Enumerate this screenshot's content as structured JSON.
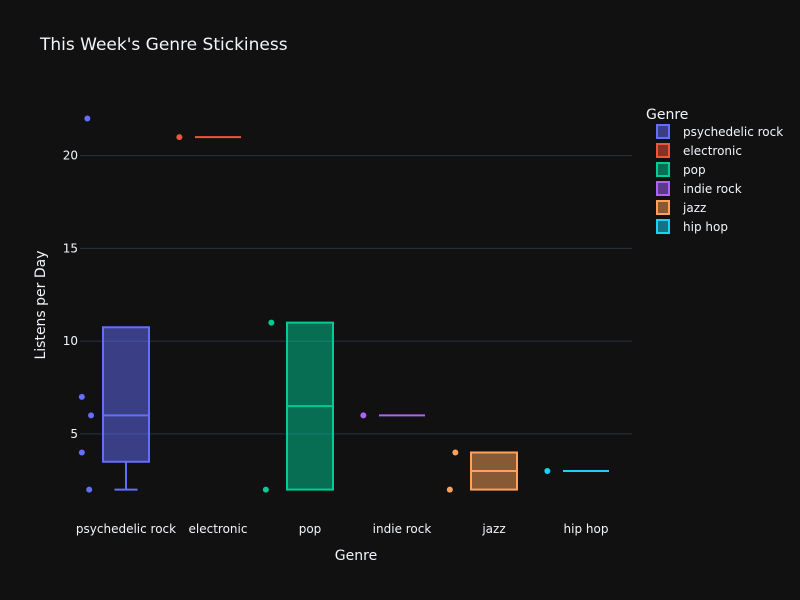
{
  "chart_data": {
    "type": "box",
    "title": "This Week's Genre Stickiness",
    "xlabel": "Genre",
    "ylabel": "Listens per Day",
    "ylim": [
      0.9,
      23
    ],
    "yticks": [
      5,
      10,
      15,
      20
    ],
    "grid": true,
    "legend_title": "Genre",
    "legend_position": "top-right",
    "series": [
      {
        "name": "psychedelic rock",
        "color": "#636efa",
        "points": [
          22,
          7,
          6,
          4,
          2
        ],
        "q1": 3.5,
        "median": 6,
        "q3": 10.75,
        "lower": 2,
        "upper": 10.75
      },
      {
        "name": "electronic",
        "color": "#ef553b",
        "points": [
          21
        ],
        "q1": 21,
        "median": 21,
        "q3": 21,
        "lower": 21,
        "upper": 21
      },
      {
        "name": "pop",
        "color": "#00cc96",
        "points": [
          11,
          2
        ],
        "q1": 2,
        "median": 6.5,
        "q3": 11,
        "lower": 2,
        "upper": 11
      },
      {
        "name": "indie rock",
        "color": "#ab63fa",
        "points": [
          6
        ],
        "q1": 6,
        "median": 6,
        "q3": 6,
        "lower": 6,
        "upper": 6
      },
      {
        "name": "jazz",
        "color": "#ffa15a",
        "points": [
          4,
          2
        ],
        "q1": 2,
        "median": 3,
        "q3": 4,
        "lower": 2,
        "upper": 4
      },
      {
        "name": "hip hop",
        "color": "#19d3f3",
        "points": [
          3
        ],
        "q1": 3,
        "median": 3,
        "q3": 3,
        "lower": 3,
        "upper": 3
      }
    ]
  }
}
